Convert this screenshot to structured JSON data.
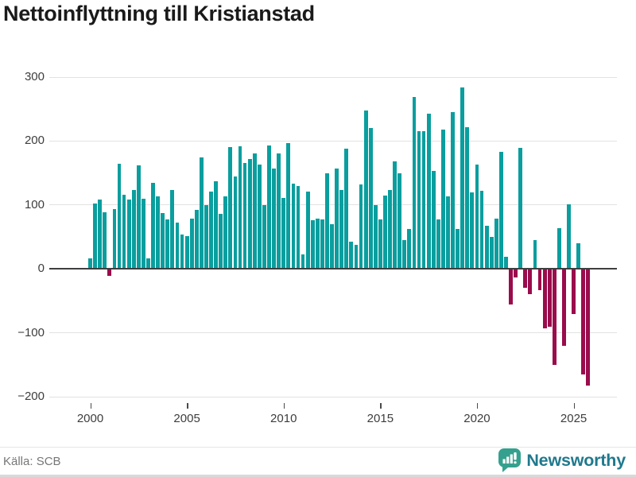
{
  "title": "Nettoinflyttning till Kristianstad",
  "footer": {
    "source": "Källa: SCB",
    "brand": "Newsworthy"
  },
  "colors": {
    "positive_bar": "#0a9e9e",
    "negative_bar": "#9a0c4c",
    "gridline": "#e2e2e2",
    "zero_line": "#3f3f3f",
    "axis_text": "#3d3d3d",
    "title_text": "#1a1a1a",
    "source_text": "#767676",
    "brand_icon": "#35a08e",
    "brand_text": "#20798d"
  },
  "chart_data": {
    "type": "bar",
    "title": "Nettoinflyttning till Kristianstad",
    "frequency": "quarterly",
    "x_start": "2000-Q1",
    "x_end": "2025-Q4",
    "ylim": [
      -200,
      300
    ],
    "grid": true,
    "y_tick_values": [
      300,
      200,
      100,
      0,
      -100,
      -200
    ],
    "y_tick_labels": [
      "300",
      "200",
      "100",
      "0",
      "−100",
      "−200"
    ],
    "x_tick_years": [
      "2000",
      "2005",
      "2010",
      "2015",
      "2020",
      "2025"
    ],
    "series": [
      {
        "name": "Nettoinflyttning",
        "values": [
          16,
          102,
          109,
          89,
          -11,
          94,
          164,
          116,
          109,
          124,
          162,
          110,
          17,
          135,
          113,
          87,
          77,
          124,
          73,
          54,
          51,
          79,
          92,
          175,
          100,
          121,
          137,
          86,
          113,
          190,
          144,
          192,
          166,
          172,
          180,
          163,
          100,
          193,
          157,
          181,
          111,
          197,
          133,
          129,
          23,
          121,
          76,
          78,
          77,
          150,
          70,
          157,
          123,
          188,
          43,
          38,
          132,
          248,
          221,
          100,
          77,
          115,
          123,
          168,
          149,
          45,
          63,
          269,
          215,
          216,
          243,
          153,
          77,
          218,
          113,
          245,
          62,
          284,
          222,
          120,
          163,
          122,
          68,
          50,
          79,
          183,
          19,
          -56,
          -14,
          189,
          -29,
          -39,
          45,
          -33,
          -93,
          -90,
          -150,
          64,
          -120,
          101,
          -71,
          40,
          -165,
          -182
        ]
      }
    ]
  }
}
